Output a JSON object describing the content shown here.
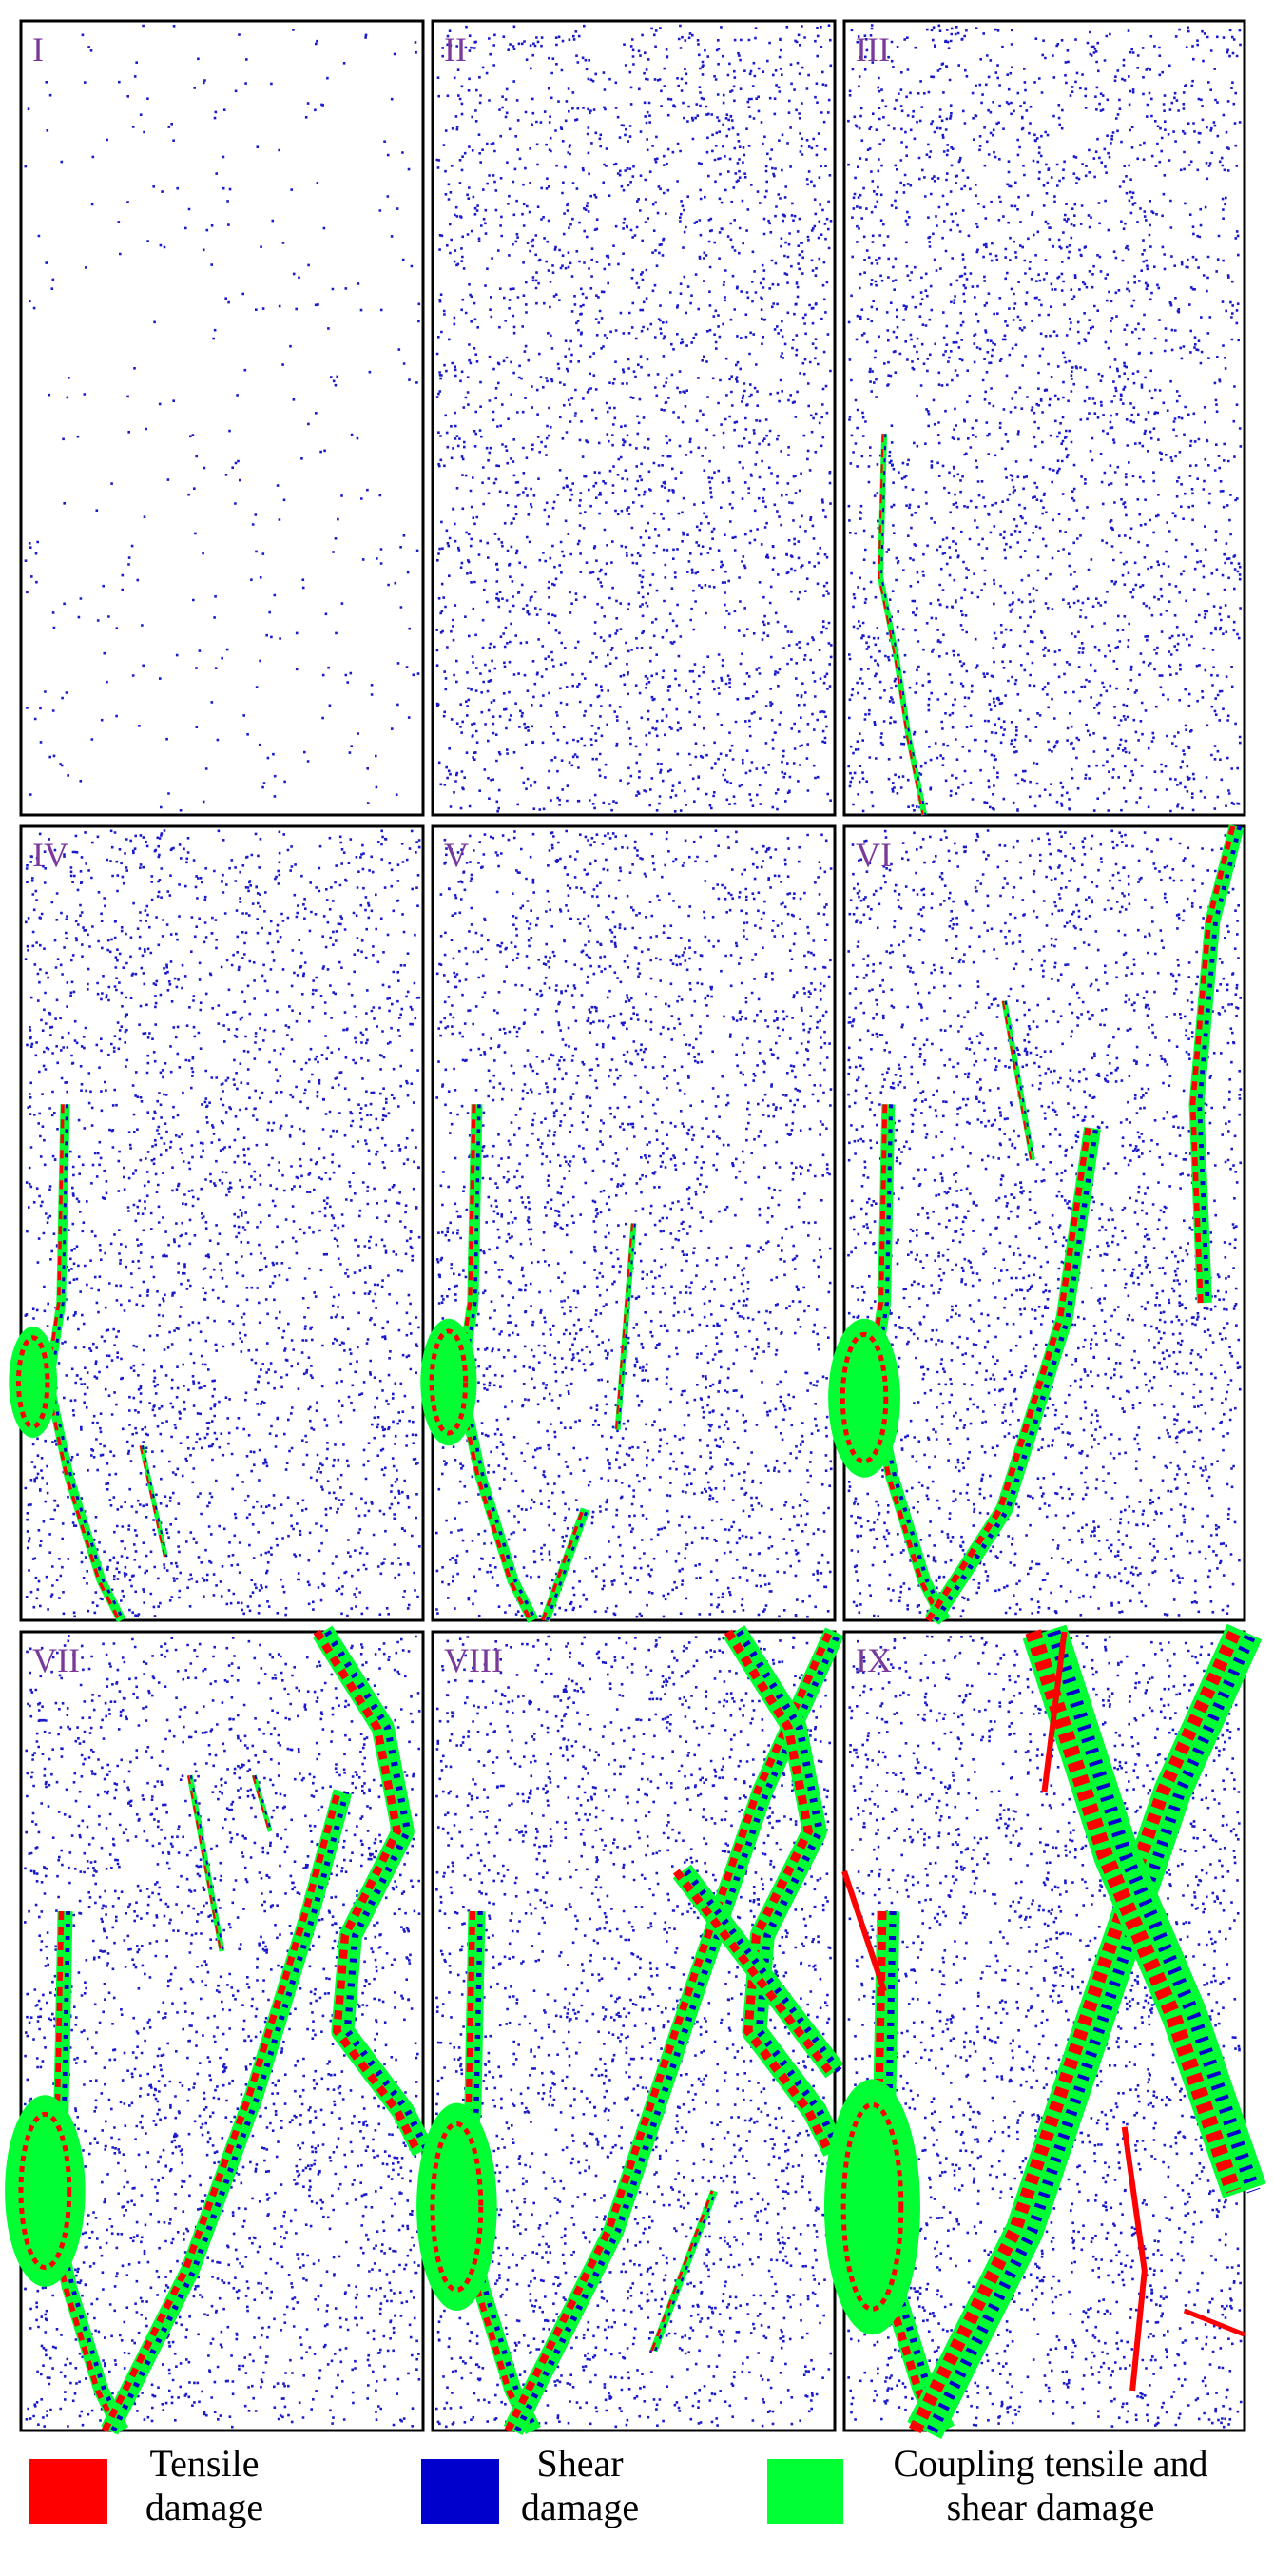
{
  "panels": [
    {
      "label": "I"
    },
    {
      "label": "II"
    },
    {
      "label": "III"
    },
    {
      "label": "IV"
    },
    {
      "label": "V"
    },
    {
      "label": "VI"
    },
    {
      "label": "VII"
    },
    {
      "label": "VIII"
    },
    {
      "label": "IX"
    }
  ],
  "legend": [
    {
      "label": "Tensile damage",
      "color": "#ff0000"
    },
    {
      "label": "Shear damage",
      "color": "#0000cc"
    },
    {
      "label": "Coupling tensile and shear damage",
      "color": "#00ff33"
    }
  ]
}
